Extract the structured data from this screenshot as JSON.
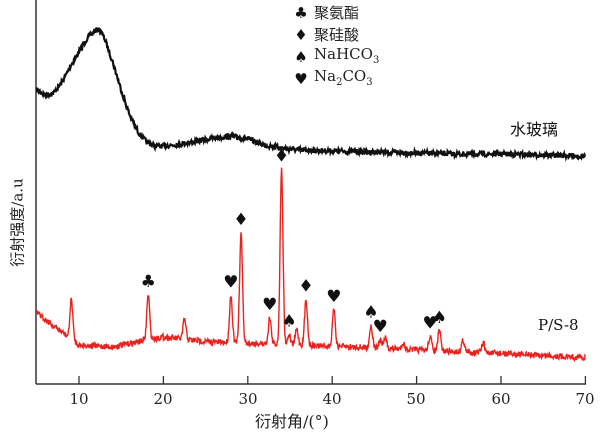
{
  "chart_data": {
    "type": "line",
    "title": "",
    "xlabel": "衍射角/(°)",
    "ylabel": "衍射强度/a.u",
    "xlim": [
      5,
      70
    ],
    "x_ticks": [
      10,
      20,
      30,
      40,
      50,
      60,
      70
    ],
    "grid": false,
    "series": [
      {
        "name": "水玻璃",
        "color": "#111111",
        "description": "Amorphous broad hump centered ~12°, weak broad hump ~28°",
        "points": [
          [
            5,
            90
          ],
          [
            6,
            95
          ],
          [
            7,
            93
          ],
          [
            8,
            82
          ],
          [
            9,
            66
          ],
          [
            10,
            52
          ],
          [
            11,
            38
          ],
          [
            12,
            30
          ],
          [
            12.5,
            30
          ],
          [
            13,
            38
          ],
          [
            14,
            62
          ],
          [
            15,
            90
          ],
          [
            16,
            115
          ],
          [
            17,
            132
          ],
          [
            18,
            142
          ],
          [
            19,
            146
          ],
          [
            20,
            146
          ],
          [
            22,
            144
          ],
          [
            24,
            141
          ],
          [
            26,
            138
          ],
          [
            28,
            136
          ],
          [
            30,
            139
          ],
          [
            32,
            145
          ],
          [
            34,
            148
          ],
          [
            36,
            150
          ],
          [
            40,
            151
          ],
          [
            45,
            152
          ],
          [
            50,
            153
          ],
          [
            55,
            154
          ],
          [
            60,
            154
          ],
          [
            65,
            155
          ],
          [
            70,
            156
          ]
        ]
      },
      {
        "name": "P/S-8",
        "color": "#e8231f",
        "peaks_deg": [
          9.1,
          18.2,
          22.5,
          28.0,
          29.2,
          32.6,
          34.0,
          34.9,
          35.8,
          36.9,
          40.2,
          44.6,
          45.7,
          46.3,
          48.4,
          51.6,
          52.7,
          55.5,
          57.9
        ]
      }
    ],
    "annotations": [
      {
        "symbol": "club",
        "phase": "聚氨酯",
        "x_deg": 18.2
      },
      {
        "symbol": "heart",
        "phase": "Na2CO3",
        "x_deg": 28.0
      },
      {
        "symbol": "diamond",
        "phase": "聚硅酸",
        "x_deg": 29.2
      },
      {
        "symbol": "heart",
        "phase": "Na2CO3",
        "x_deg": 32.6
      },
      {
        "symbol": "diamond",
        "phase": "聚硅酸",
        "x_deg": 34.0
      },
      {
        "symbol": "spade",
        "phase": "NaHCO3",
        "x_deg": 34.9
      },
      {
        "symbol": "diamond",
        "phase": "聚硅酸",
        "x_deg": 36.9
      },
      {
        "symbol": "heart",
        "phase": "Na2CO3",
        "x_deg": 40.2
      },
      {
        "symbol": "spade",
        "phase": "NaHCO3",
        "x_deg": 44.6
      },
      {
        "symbol": "heart",
        "phase": "Na2CO3",
        "x_deg": 45.7
      },
      {
        "symbol": "heart",
        "phase": "Na2CO3",
        "x_deg": 51.6
      },
      {
        "symbol": "spade",
        "phase": "NaHCO3",
        "x_deg": 52.7
      }
    ]
  },
  "legend": {
    "items": [
      {
        "icon": "♣",
        "label": "聚氨酯",
        "sub": "",
        "tail": ""
      },
      {
        "icon": "♦",
        "label": "聚硅酸",
        "sub": "",
        "tail": ""
      },
      {
        "icon": "♠",
        "label": "NaHCO",
        "sub": "3",
        "tail": ""
      },
      {
        "icon": "♥",
        "label": "Na",
        "sub": "2",
        "tail": "CO",
        "sub2": "3"
      }
    ]
  },
  "labels": {
    "series_top": "水玻璃",
    "series_bottom": "P/S-8",
    "xlabel": "衍射角/(°)",
    "ylabel": "衍射强度/a.u"
  },
  "ticks": [
    "10",
    "20",
    "30",
    "40",
    "50",
    "60",
    "70"
  ]
}
